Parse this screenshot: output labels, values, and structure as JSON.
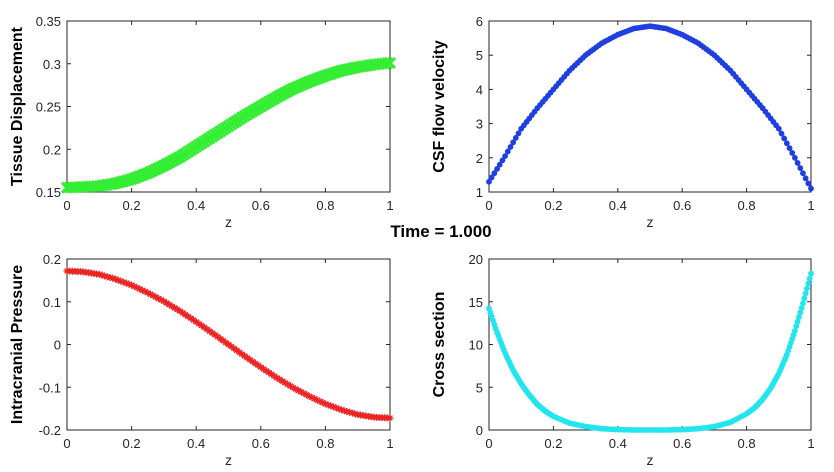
{
  "figure": {
    "title": "Time = 1.000"
  },
  "chart_data": [
    {
      "type": "scatter",
      "ylabel": "Tissue Displacement",
      "xlabel": "z",
      "xlim": [
        0,
        1
      ],
      "ylim": [
        0.15,
        0.35
      ],
      "xticks": [
        "0",
        "0.2",
        "0.4",
        "0.6",
        "0.8",
        "1"
      ],
      "yticks": [
        "0.15",
        "0.2",
        "0.25",
        "0.3",
        "0.35"
      ],
      "marker": "x",
      "color": "#33ee33",
      "series": [
        {
          "x": [
            0,
            0.05,
            0.1,
            0.15,
            0.2,
            0.25,
            0.3,
            0.35,
            0.4,
            0.45,
            0.5,
            0.55,
            0.6,
            0.65,
            0.7,
            0.75,
            0.8,
            0.85,
            0.9,
            0.95,
            1
          ],
          "y": [
            0.155,
            0.156,
            0.157,
            0.16,
            0.165,
            0.172,
            0.181,
            0.191,
            0.203,
            0.215,
            0.227,
            0.239,
            0.25,
            0.261,
            0.271,
            0.279,
            0.286,
            0.292,
            0.296,
            0.299,
            0.301
          ]
        }
      ]
    },
    {
      "type": "scatter",
      "ylabel": "CSF flow velocity",
      "xlabel": "z",
      "xlim": [
        0,
        1
      ],
      "ylim": [
        1,
        6
      ],
      "xticks": [
        "0",
        "0.2",
        "0.4",
        "0.6",
        "0.8",
        "1"
      ],
      "yticks": [
        "1",
        "2",
        "3",
        "4",
        "5",
        "6"
      ],
      "marker": "circle",
      "color": "#1f3fe0",
      "series": [
        {
          "x": [
            0,
            0.05,
            0.1,
            0.15,
            0.2,
            0.25,
            0.3,
            0.35,
            0.4,
            0.45,
            0.5,
            0.55,
            0.6,
            0.65,
            0.7,
            0.75,
            0.8,
            0.85,
            0.9,
            0.95,
            1
          ],
          "y": [
            1.3,
            2.05,
            2.85,
            3.45,
            4.0,
            4.55,
            5.0,
            5.35,
            5.6,
            5.78,
            5.85,
            5.78,
            5.6,
            5.35,
            5.0,
            4.55,
            4.0,
            3.45,
            2.85,
            2.0,
            1.1
          ]
        }
      ]
    },
    {
      "type": "scatter",
      "ylabel": "Intracranial Pressure",
      "xlabel": "z",
      "xlim": [
        0,
        1
      ],
      "ylim": [
        -0.2,
        0.2
      ],
      "xticks": [
        "0",
        "0.2",
        "0.4",
        "0.6",
        "0.8",
        "1"
      ],
      "yticks": [
        "-0.2",
        "-0.1",
        "0",
        "0.1",
        "0.2"
      ],
      "marker": "star",
      "color": "#ee2222",
      "series": [
        {
          "x": [
            0,
            0.05,
            0.1,
            0.15,
            0.2,
            0.25,
            0.3,
            0.35,
            0.4,
            0.45,
            0.5,
            0.55,
            0.6,
            0.65,
            0.7,
            0.75,
            0.8,
            0.85,
            0.9,
            0.95,
            1
          ],
          "y": [
            0.172,
            0.17,
            0.164,
            0.153,
            0.139,
            0.121,
            0.101,
            0.078,
            0.053,
            0.027,
            0.0,
            -0.027,
            -0.053,
            -0.078,
            -0.101,
            -0.121,
            -0.139,
            -0.153,
            -0.164,
            -0.17,
            -0.172
          ]
        }
      ]
    },
    {
      "type": "scatter",
      "ylabel": "Cross section",
      "xlabel": "z",
      "xlim": [
        0,
        1
      ],
      "ylim": [
        0,
        20
      ],
      "xticks": [
        "0",
        "0.2",
        "0.4",
        "0.6",
        "0.8",
        "1"
      ],
      "yticks": [
        "0",
        "5",
        "10",
        "15",
        "20"
      ],
      "marker": "circle",
      "color": "#22e5ee",
      "series": [
        {
          "x": [
            0,
            0.025,
            0.05,
            0.075,
            0.1,
            0.125,
            0.15,
            0.175,
            0.2,
            0.25,
            0.3,
            0.35,
            0.4,
            0.45,
            0.5,
            0.55,
            0.6,
            0.65,
            0.7,
            0.75,
            0.8,
            0.825,
            0.85,
            0.875,
            0.9,
            0.925,
            0.95,
            0.975,
            1
          ],
          "y": [
            14.2,
            11.4,
            9.0,
            7.0,
            5.4,
            4.1,
            3.0,
            2.2,
            1.6,
            0.8,
            0.4,
            0.15,
            0.05,
            0.0,
            0.0,
            0.0,
            0.05,
            0.15,
            0.4,
            0.9,
            1.9,
            2.6,
            3.6,
            4.9,
            6.6,
            8.8,
            11.6,
            14.8,
            18.3
          ]
        }
      ]
    }
  ]
}
